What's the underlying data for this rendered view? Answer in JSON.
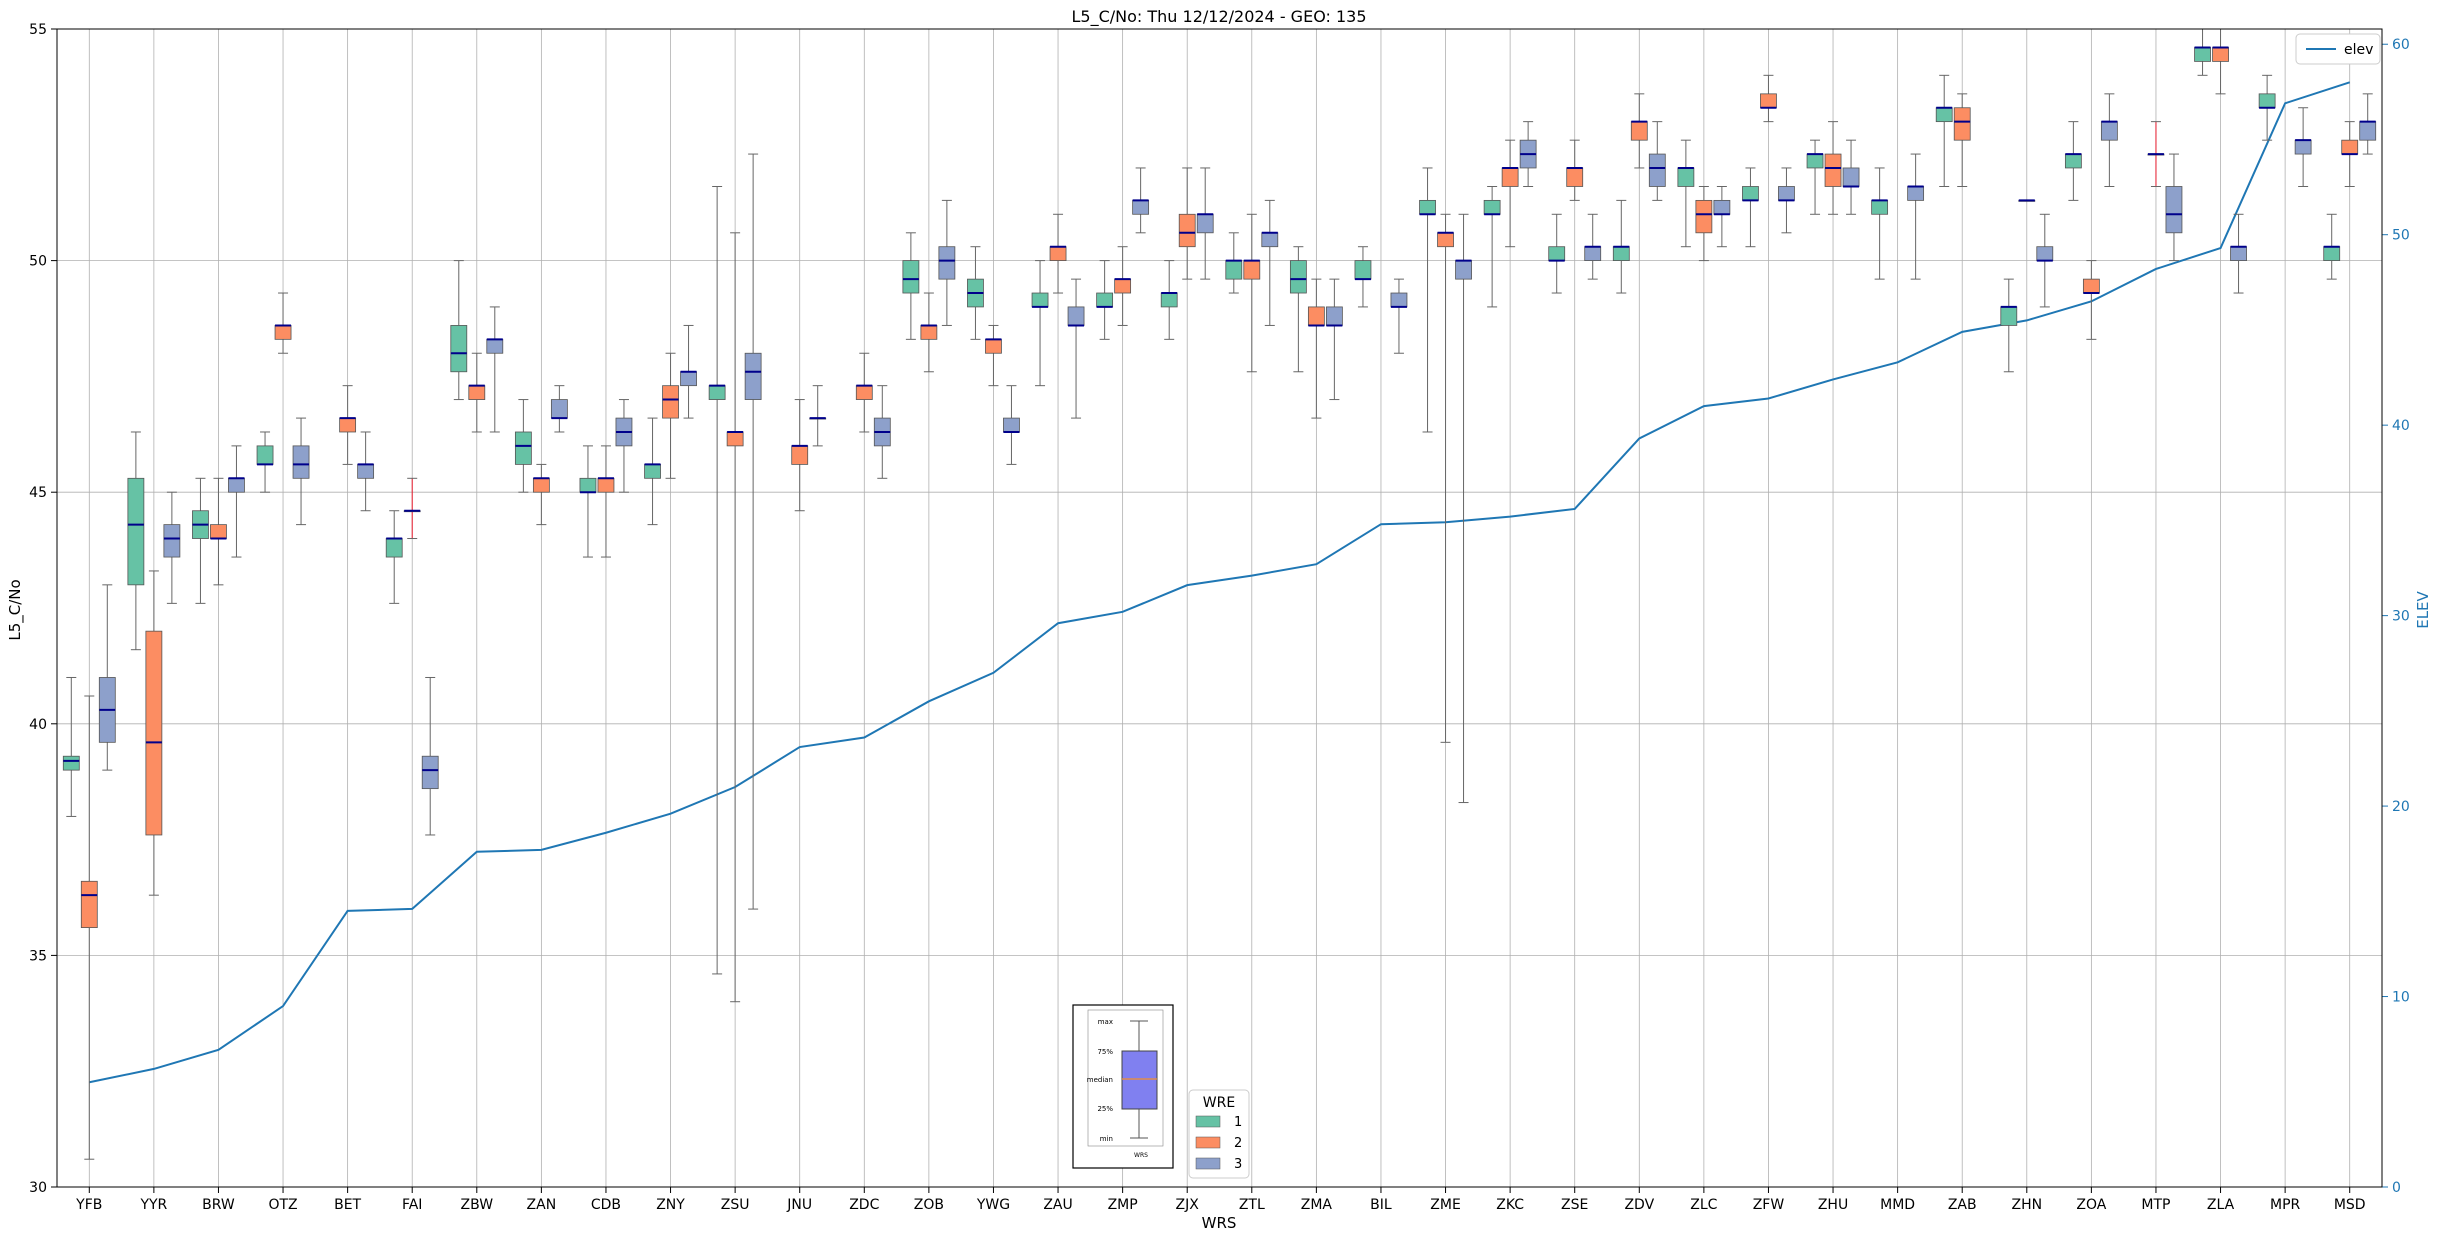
{
  "chart_data": {
    "type": "box",
    "title": "L5_C/No: Thu 12/12/2024 - GEO: 135",
    "xlabel": "WRS",
    "ylabel": "L5_C/No",
    "y2label": "ELEV",
    "ylim": [
      30,
      55
    ],
    "y2lim": [
      0,
      60.8
    ],
    "yticks": [
      "30",
      "35",
      "40",
      "45",
      "50",
      "55"
    ],
    "y2ticks": [
      "0",
      "10",
      "20",
      "30",
      "40",
      "50",
      "60"
    ],
    "grid": true,
    "categories": [
      "YFB",
      "YYR",
      "BRW",
      "OTZ",
      "BET",
      "FAI",
      "ZBW",
      "ZAN",
      "CDB",
      "ZNY",
      "ZSU",
      "JNU",
      "ZDC",
      "ZOB",
      "YWG",
      "ZAU",
      "ZMP",
      "ZJX",
      "ZTL",
      "ZMA",
      "BIL",
      "ZME",
      "ZKC",
      "ZSE",
      "ZDV",
      "ZLC",
      "ZFW",
      "ZHU",
      "MMD",
      "ZAB",
      "ZHN",
      "ZOA",
      "MTP",
      "ZLA",
      "MPR",
      "MSD"
    ],
    "series": [
      {
        "name": "1",
        "color": "#66c2a5",
        "boxes": [
          [
            0,
            38,
            39,
            39.2,
            39.3,
            41
          ],
          [
            1,
            41.6,
            43,
            44.3,
            45.3,
            46.3
          ],
          [
            2,
            42.6,
            44,
            44.3,
            44.6,
            45.3
          ],
          [
            3,
            45,
            45.6,
            45.6,
            46,
            46.3
          ],
          [
            5,
            42.6,
            43.6,
            44,
            44,
            44.6
          ],
          [
            6,
            47,
            47.6,
            48,
            48.6,
            50
          ],
          [
            7,
            45,
            45.6,
            46,
            46.3,
            47
          ],
          [
            8,
            43.6,
            45,
            45,
            45.3,
            46
          ],
          [
            9,
            44.3,
            45.3,
            45.6,
            45.6,
            46.6
          ],
          [
            10,
            34.6,
            47,
            47.3,
            47.3,
            51.6
          ],
          [
            13,
            48.3,
            49.3,
            49.6,
            50,
            50.6
          ],
          [
            14,
            48.3,
            49,
            49.3,
            49.6,
            50.3
          ],
          [
            15,
            47.3,
            49,
            49,
            49.3,
            50
          ],
          [
            16,
            48.3,
            49,
            49,
            49.3,
            50
          ],
          [
            17,
            48.3,
            49,
            49.3,
            49.3,
            50
          ],
          [
            18,
            49.3,
            49.6,
            50,
            50,
            50.6
          ],
          [
            19,
            47.6,
            49.3,
            49.6,
            50,
            50.3
          ],
          [
            20,
            49,
            49.6,
            49.6,
            50,
            50.3
          ],
          [
            21,
            46.3,
            51,
            51,
            51.3,
            52
          ],
          [
            22,
            49,
            51,
            51,
            51.3,
            51.6
          ],
          [
            23,
            49.3,
            50,
            50,
            50.3,
            51
          ],
          [
            24,
            49.3,
            50,
            50.3,
            50.3,
            51.3
          ],
          [
            25,
            50.3,
            51.6,
            52,
            52,
            52.6
          ],
          [
            26,
            50.3,
            51.3,
            51.3,
            51.6,
            52
          ],
          [
            27,
            51,
            52,
            52.3,
            52.3,
            52.6
          ],
          [
            28,
            49.6,
            51,
            51.3,
            51.3,
            52
          ],
          [
            29,
            51.6,
            53,
            53.3,
            53.3,
            54
          ],
          [
            30,
            47.6,
            48.6,
            49,
            49,
            49.6
          ],
          [
            31,
            51.3,
            52,
            52.3,
            52.3,
            53
          ],
          [
            33,
            54,
            54.3,
            54.6,
            54.6,
            55
          ],
          [
            34,
            52.6,
            53.3,
            53.3,
            53.6,
            54
          ],
          [
            35,
            49.6,
            50,
            50.3,
            50.3,
            51
          ]
        ]
      },
      {
        "name": "2",
        "color": "#fc8d62",
        "boxes": [
          [
            0,
            30.6,
            35.6,
            36.3,
            36.6,
            40.6
          ],
          [
            1,
            36.3,
            37.6,
            39.6,
            42,
            43.3
          ],
          [
            2,
            43,
            44,
            44,
            44.3,
            45.3
          ],
          [
            3,
            48,
            48.3,
            48.6,
            48.6,
            49.3
          ],
          [
            4,
            45.6,
            46.3,
            46.6,
            46.6,
            47.3
          ],
          [
            5,
            44,
            44.6,
            44.6,
            44.6,
            45.3
          ],
          [
            6,
            46.3,
            47,
            47.3,
            47.3,
            48
          ],
          [
            7,
            44.3,
            45,
            45.3,
            45.3,
            45.6
          ],
          [
            8,
            43.6,
            45,
            45.3,
            45.3,
            46
          ],
          [
            9,
            45.3,
            46.6,
            47,
            47.3,
            48
          ],
          [
            10,
            34,
            46,
            46.3,
            46.3,
            50.6
          ],
          [
            11,
            44.6,
            45.6,
            46,
            46,
            47
          ],
          [
            12,
            46.3,
            47,
            47.3,
            47.3,
            48
          ],
          [
            13,
            47.6,
            48.3,
            48.6,
            48.6,
            49.3
          ],
          [
            14,
            47.3,
            48,
            48.3,
            48.3,
            48.6
          ],
          [
            15,
            49.3,
            50,
            50.3,
            50.3,
            51
          ],
          [
            16,
            48.6,
            49.3,
            49.6,
            49.6,
            50.3
          ],
          [
            17,
            49.6,
            50.3,
            50.6,
            51,
            52
          ],
          [
            18,
            47.6,
            49.6,
            50,
            50,
            51
          ],
          [
            19,
            46.6,
            48.6,
            48.6,
            49,
            49.6
          ],
          [
            21,
            39.6,
            50.3,
            50.6,
            50.6,
            51
          ],
          [
            22,
            50.3,
            51.6,
            52,
            52,
            52.6
          ],
          [
            23,
            51.3,
            51.6,
            52,
            52,
            52.6
          ],
          [
            24,
            52,
            52.6,
            53,
            53,
            53.6
          ],
          [
            25,
            50,
            50.6,
            51,
            51.3,
            51.6
          ],
          [
            26,
            53,
            53.3,
            53.3,
            53.6,
            54
          ],
          [
            27,
            51,
            51.6,
            52,
            52.3,
            53
          ],
          [
            29,
            51.6,
            52.6,
            53,
            53.3,
            53.6
          ],
          [
            30,
            51.3,
            51.3,
            51.3,
            51.3,
            51.3
          ],
          [
            31,
            48.3,
            49.3,
            49.3,
            49.6,
            50
          ],
          [
            32,
            51.6,
            52.3,
            52.3,
            52.3,
            53
          ],
          [
            33,
            53.6,
            54.3,
            54.6,
            54.6,
            55
          ],
          [
            35,
            51.6,
            52.3,
            52.3,
            52.6,
            53
          ]
        ]
      },
      {
        "name": "3",
        "color": "#8da0cb",
        "boxes": [
          [
            0,
            39,
            39.6,
            40.3,
            41,
            43
          ],
          [
            1,
            42.6,
            43.6,
            44,
            44.3,
            45
          ],
          [
            2,
            43.6,
            45,
            45.3,
            45.3,
            46
          ],
          [
            3,
            44.3,
            45.3,
            45.6,
            46,
            46.6
          ],
          [
            4,
            44.6,
            45.3,
            45.6,
            45.6,
            46.3
          ],
          [
            5,
            37.6,
            38.6,
            39,
            39.3,
            41
          ],
          [
            6,
            46.3,
            48,
            48.3,
            48.3,
            49
          ],
          [
            7,
            46.3,
            46.6,
            46.6,
            47,
            47.3
          ],
          [
            8,
            45,
            46,
            46.3,
            46.6,
            47
          ],
          [
            9,
            46.6,
            47.3,
            47.6,
            47.6,
            48.6
          ],
          [
            10,
            36,
            47,
            47.6,
            48,
            52.3
          ],
          [
            11,
            46,
            46.6,
            46.6,
            46.6,
            47.3
          ],
          [
            12,
            45.3,
            46,
            46.3,
            46.6,
            47.3
          ],
          [
            13,
            48.6,
            49.6,
            50,
            50.3,
            51.3
          ],
          [
            14,
            45.6,
            46.3,
            46.3,
            46.6,
            47.3
          ],
          [
            15,
            46.6,
            48.6,
            48.6,
            49,
            49.6
          ],
          [
            16,
            50.6,
            51,
            51.3,
            51.3,
            52
          ],
          [
            17,
            49.6,
            50.6,
            51,
            51,
            52
          ],
          [
            18,
            48.6,
            50.3,
            50.6,
            50.6,
            51.3
          ],
          [
            19,
            47,
            48.6,
            48.6,
            49,
            49.6
          ],
          [
            20,
            48,
            49,
            49,
            49.3,
            49.6
          ],
          [
            21,
            38.3,
            49.6,
            50,
            50,
            51
          ],
          [
            22,
            51.6,
            52,
            52.3,
            52.6,
            53
          ],
          [
            23,
            49.6,
            50,
            50.3,
            50.3,
            51
          ],
          [
            24,
            51.3,
            51.6,
            52,
            52.3,
            53
          ],
          [
            25,
            50.3,
            51,
            51,
            51.3,
            51.6
          ],
          [
            26,
            50.6,
            51.3,
            51.3,
            51.6,
            52
          ],
          [
            27,
            51,
            51.6,
            51.6,
            52,
            52.6
          ],
          [
            28,
            49.6,
            51.3,
            51.6,
            51.6,
            52.3
          ],
          [
            30,
            49,
            50,
            50,
            50.3,
            51
          ],
          [
            31,
            51.6,
            52.6,
            53,
            53,
            53.6
          ],
          [
            32,
            50,
            50.6,
            51,
            51.6,
            52.3
          ],
          [
            33,
            49.3,
            50,
            50.3,
            50.3,
            51
          ],
          [
            34,
            51.6,
            52.3,
            52.6,
            52.6,
            53.3
          ],
          [
            35,
            52.3,
            52.6,
            53,
            53,
            53.6
          ]
        ]
      }
    ],
    "line": {
      "name": "elev",
      "color": "#1f77b4",
      "values": [
        5.5,
        6.2,
        7.2,
        9.5,
        14.5,
        14.6,
        17.6,
        17.7,
        18.6,
        19.6,
        21,
        23.1,
        23.6,
        25.5,
        27,
        29.6,
        30.2,
        31.6,
        32.1,
        32.7,
        34.8,
        34.9,
        35.2,
        35.6,
        39.3,
        41,
        41.4,
        42.4,
        43.3,
        44.9,
        45.5,
        46.5,
        48.2,
        49.3,
        56.9,
        58
      ]
    },
    "legend": {
      "title": "WRE",
      "position": "bottom-center",
      "entries": [
        "1",
        "2",
        "3"
      ]
    },
    "line_legend": {
      "position": "top-right",
      "entries": [
        "elev"
      ]
    },
    "box_key": {
      "position": "bottom-center",
      "labels": [
        "max",
        "75%",
        "median",
        "25%",
        "min"
      ],
      "xlabel": "WRS"
    }
  }
}
